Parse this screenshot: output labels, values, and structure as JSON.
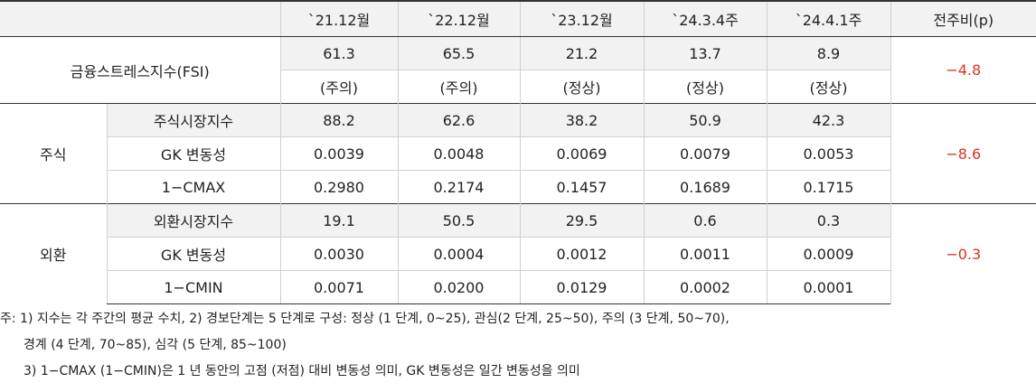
{
  "table": {
    "header": [
      "`21.12월",
      "`22.12월",
      "`23.12월",
      "`24.3.4주",
      "`24.4.1주",
      "전주비(p)"
    ],
    "fsi": {
      "label": "금융스트레스지수(FSI)",
      "values": [
        "61.3",
        "65.5",
        "21.2",
        "13.7",
        "8.9"
      ],
      "status": [
        "(주의)",
        "(주의)",
        "(정상)",
        "(정상)",
        "(정상)"
      ],
      "change": "−4.8"
    },
    "groups": [
      {
        "label": "주식",
        "change": "−8.6",
        "rows": [
          {
            "label": "주식시장지수",
            "values": [
              "88.2",
              "62.6",
              "38.2",
              "50.9",
              "42.3"
            ]
          },
          {
            "label": "GK 변동성",
            "values": [
              "0.0039",
              "0.0048",
              "0.0069",
              "0.0079",
              "0.0053"
            ]
          },
          {
            "label": "1−CMAX",
            "values": [
              "0.2980",
              "0.2174",
              "0.1457",
              "0.1689",
              "0.1715"
            ]
          }
        ]
      },
      {
        "label": "외환",
        "change": "−0.3",
        "rows": [
          {
            "label": "외환시장지수",
            "values": [
              "19.1",
              "50.5",
              "29.5",
              "0.6",
              "0.3"
            ]
          },
          {
            "label": "GK 변동성",
            "values": [
              "0.0030",
              "0.0004",
              "0.0012",
              "0.0011",
              "0.0009"
            ]
          },
          {
            "label": "1−CMIN",
            "values": [
              "0.0071",
              "0.0200",
              "0.0129",
              "0.0002",
              "0.0001"
            ]
          }
        ]
      }
    ]
  },
  "notes": [
    "주: 1) 지수는 각 주간의 평균 수치, 2) 경보단계는 5 단계로 구성: 정상 (1 단계, 0~25), 관심(2 단계, 25~50), 주의 (3 단계, 50~70),",
    "경계 (4 단계, 70~85), 심각 (5 단계, 85~100)",
    "3) 1−CMAX (1−CMIN)은 1 년 동안의 고점 (저점) 대비 변동성 의미, GK 변동성은 일간 변동성을 의미"
  ]
}
